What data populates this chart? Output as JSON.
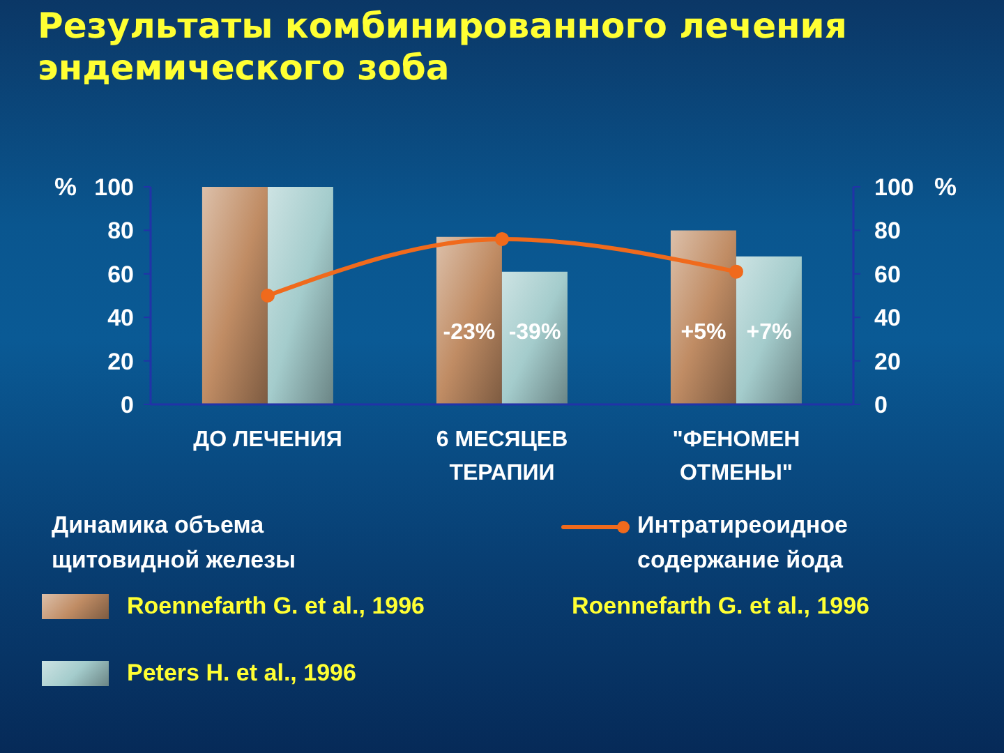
{
  "chart_data": {
    "type": "bar",
    "title": "Результаты комбинированного лечения эндемического зоба",
    "categories": [
      "ДО ЛЕЧЕНИЯ",
      "6 МЕСЯЦЕВ ТЕРАПИИ",
      "\"ФЕНОМЕН ОТМЕНЫ\""
    ],
    "series": [
      {
        "name": "Roennefarth G. et al., 1996",
        "color": "#c08c64",
        "values": [
          100,
          77,
          80
        ]
      },
      {
        "name": "Peters H. et al., 1996",
        "color": "#a4cccc",
        "values": [
          100,
          61,
          68
        ]
      },
      {
        "type": "line",
        "name": "Интратиреоидное содержание йода",
        "color": "#f06a1c",
        "values": [
          50,
          76,
          61
        ]
      }
    ],
    "ylabel": "%",
    "y2label": "%",
    "ylim": [
      0,
      100
    ],
    "yticks": [
      0,
      20,
      40,
      60,
      80,
      100
    ],
    "y2lim": [
      0,
      100
    ],
    "y2ticks": [
      0,
      20,
      40,
      60,
      80,
      100
    ],
    "legend_title": "Динамика объема щитовидной железы",
    "annotations": [
      {
        "text": "-23%",
        "x": "6 МЕСЯЦЕВ ТЕРАПИИ",
        "y": 33
      },
      {
        "text": "-39%",
        "x": "6 МЕСЯЦЕВ ТЕРАПИИ",
        "y": 33
      },
      {
        "text": "+5%",
        "x": "\"ФЕНОМЕН ОТМЕНЫ\"",
        "y": 33
      },
      {
        "text": "+7%",
        "x": "\"ФЕНОМЕН ОТМЕНЫ\"",
        "y": 33
      },
      "Roennefarth G. et al., 1996"
    ],
    "legend": "bottom",
    "marker": "circle",
    "line_style": "solid"
  }
}
